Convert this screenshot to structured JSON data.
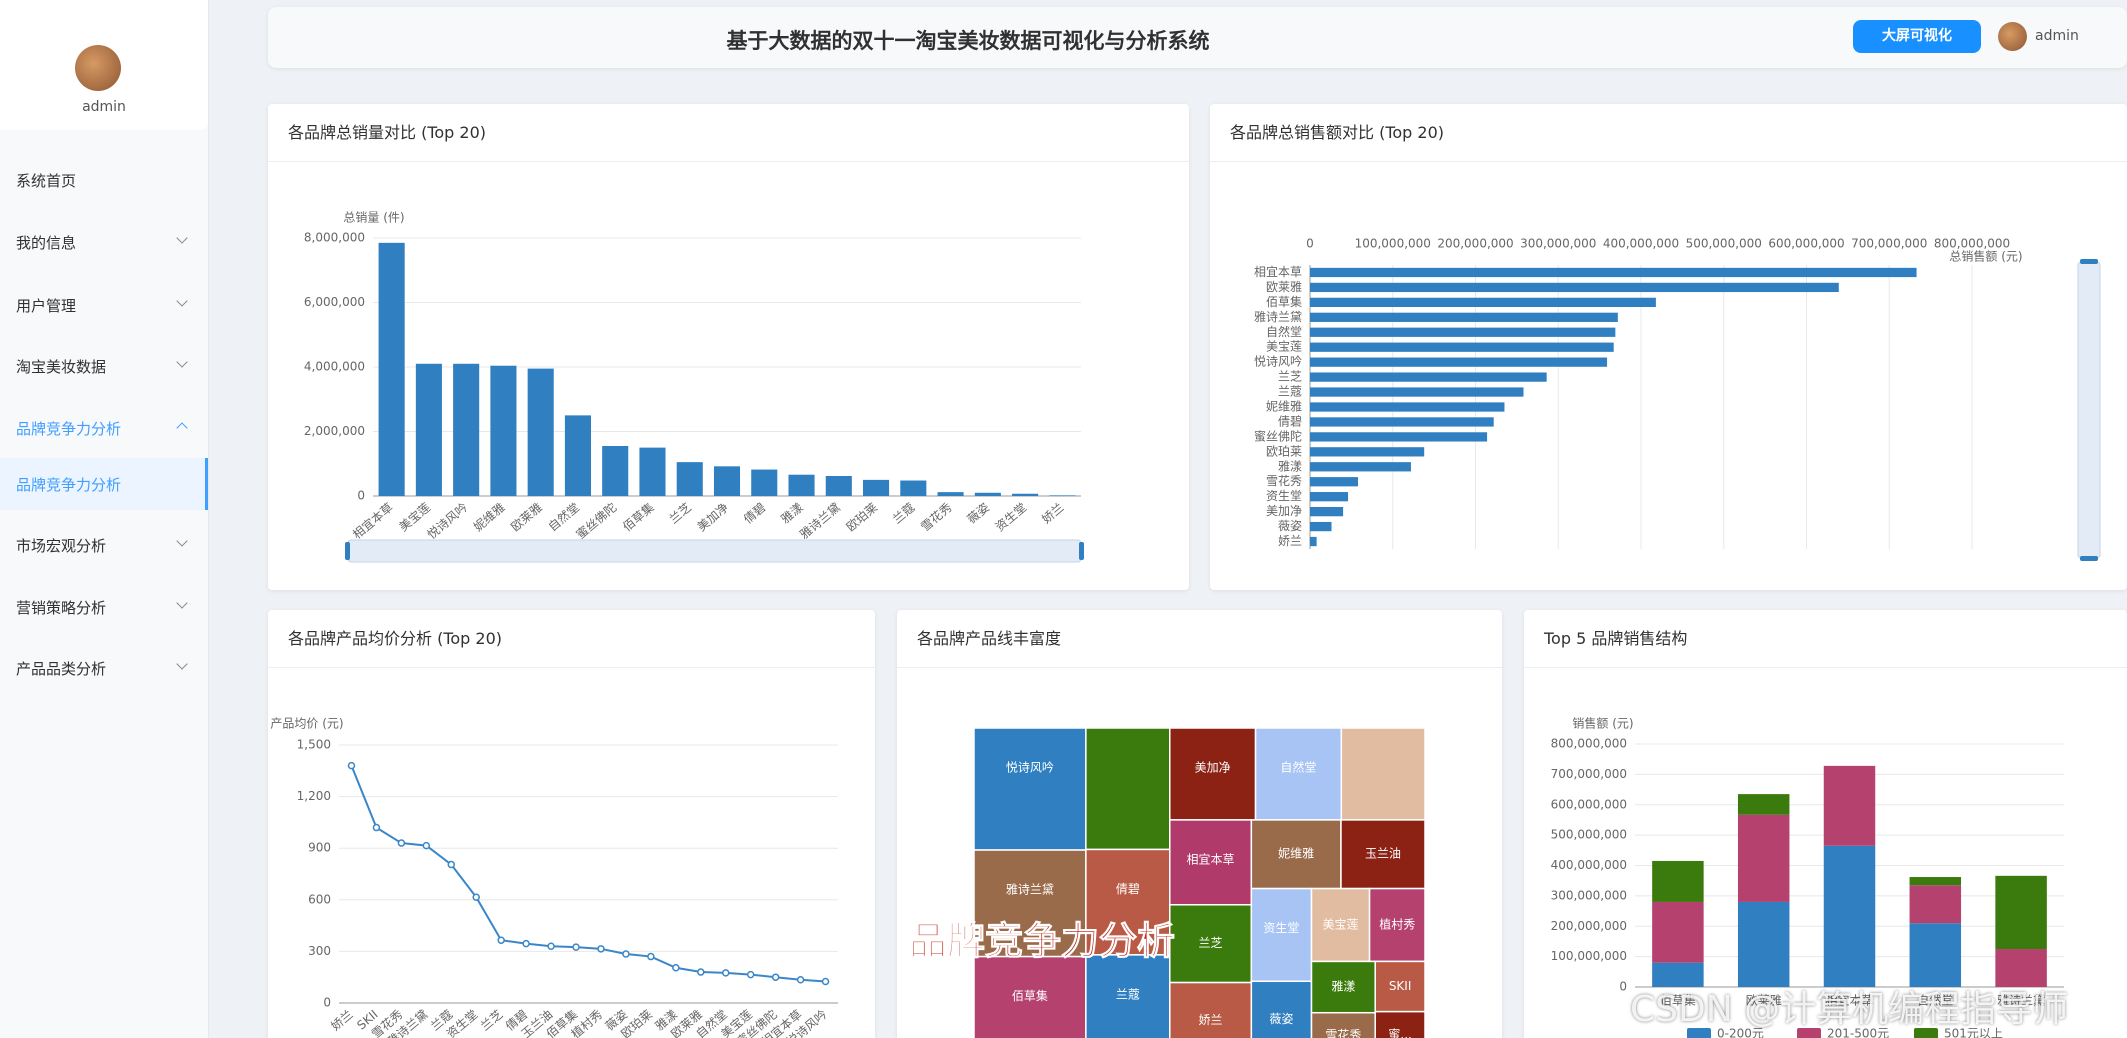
{
  "sidebar": {
    "user": "admin",
    "menu": [
      "系统首页",
      "我的信息",
      "用户管理",
      "淘宝美妆数据",
      "品牌竞争力分析",
      "品牌竞争力分析",
      "市场宏观分析",
      "营销策略分析",
      "产品品类分析"
    ]
  },
  "header": {
    "title": "基于大数据的双十一淘宝美妆数据可视化与分析系统",
    "button": "大屏可视化",
    "user": "admin"
  },
  "overlay": {
    "caption": "品牌竞争力分析",
    "watermark": "CSDN @计算机编程指导师"
  },
  "chart_data": [
    {
      "type": "bar",
      "title": "各品牌总销量对比 (Top 20)",
      "y_label": "总销量 (件)",
      "categories": [
        "相宜本草",
        "美宝莲",
        "悦诗风吟",
        "妮维雅",
        "欧莱雅",
        "自然堂",
        "蜜丝佛陀",
        "佰草集",
        "兰芝",
        "美加净",
        "倩碧",
        "雅漾",
        "雅诗兰黛",
        "欧珀莱",
        "兰蔻",
        "雪花秀",
        "薇姿",
        "资生堂",
        "娇兰"
      ],
      "values": [
        7850000,
        4100000,
        4100000,
        4040000,
        3950000,
        2500000,
        1550000,
        1500000,
        1050000,
        920000,
        820000,
        660000,
        620000,
        500000,
        480000,
        120000,
        100000,
        70000,
        20000
      ],
      "color": "#2f7fc1",
      "ylim": [
        0,
        8000000
      ],
      "yticks": [
        0,
        {
          "value": 2000000,
          "label": "2,000,000"
        },
        {
          "value": 4000000,
          "label": "4,000,000"
        },
        {
          "value": 6000000,
          "label": "6,000,000"
        },
        {
          "value": 8000000,
          "label": "8,000,000"
        }
      ],
      "grid": true
    },
    {
      "type": "barh",
      "title": "各品牌总销售额对比 (Top 20)",
      "x_label": "总销售额 (元)",
      "categories": [
        "相宜本草",
        "欧莱雅",
        "佰草集",
        "雅诗兰黛",
        "自然堂",
        "美宝莲",
        "悦诗风吟",
        "兰芝",
        "兰蔻",
        "妮维雅",
        "倩碧",
        "蜜丝佛陀",
        "欧珀莱",
        "雅漾",
        "雪花秀",
        "资生堂",
        "美加净",
        "薇姿",
        "娇兰"
      ],
      "values": [
        733000000,
        639000000,
        418000000,
        372000000,
        369000000,
        367000000,
        359000000,
        286000000,
        258000000,
        235000000,
        222000000,
        214000000,
        138000000,
        122000000,
        58000000,
        46000000,
        40000000,
        26000000,
        8000000
      ],
      "color": "#2f7fc1",
      "xlim": [
        0,
        800000000
      ],
      "xticks": [
        0,
        {
          "value": 100000000,
          "label": "100,000,000"
        },
        {
          "value": 200000000,
          "label": "200,000,000"
        },
        {
          "value": 300000000,
          "label": "300,000,000"
        },
        {
          "value": 400000000,
          "label": "400,000,000"
        },
        {
          "value": 500000000,
          "label": "500,000,000"
        },
        {
          "value": 600000000,
          "label": "600,000,000"
        },
        {
          "value": 700000000,
          "label": "700,000,000"
        },
        {
          "value": 800000000,
          "label": "800,000,000"
        }
      ],
      "grid": true
    },
    {
      "type": "line",
      "title": "各品牌产品均价分析 (Top 20)",
      "y_label": "产品均价 (元)",
      "categories": [
        "娇兰",
        "SKII",
        "雪花秀",
        "雅诗兰黛",
        "兰蔻",
        "资生堂",
        "兰芝",
        "倩碧",
        "玉兰油",
        "佰草集",
        "植村秀",
        "薇姿",
        "欧珀莱",
        "雅漾",
        "欧莱雅",
        "自然堂",
        "美宝莲",
        "蜜丝佛陀",
        "相宜本草",
        "悦诗风吟"
      ],
      "values": [
        1380,
        1020,
        930,
        915,
        805,
        615,
        365,
        345,
        330,
        325,
        315,
        285,
        270,
        205,
        180,
        175,
        165,
        150,
        135,
        125
      ],
      "color": "#3a86c8",
      "ylim": [
        0,
        1500
      ],
      "yticks": [
        0,
        300,
        600,
        900,
        {
          "value": 1200,
          "label": "1,200"
        },
        {
          "value": 1500,
          "label": "1,500"
        }
      ],
      "grid": true
    },
    {
      "type": "treemap",
      "title": "各品牌产品线丰富度",
      "categories": [
        "悦诗风吟",
        "雅诗兰黛",
        "佰草集",
        null,
        "倩碧",
        "兰蔻",
        "美加净",
        "自然堂",
        null,
        "相宜本草",
        "兰芝",
        "娇兰",
        "妮维雅",
        "玉兰油",
        "资生堂",
        "薇姿",
        "美宝莲",
        "植村秀",
        "雅漾",
        "雪花秀",
        "SKII",
        "蜜..."
      ],
      "values": [
        71,
        62,
        59,
        53,
        46,
        45,
        41,
        41,
        40,
        36,
        33,
        32,
        32,
        30,
        29,
        24,
        22,
        21,
        17,
        15,
        13,
        12
      ],
      "colors": [
        "#2f7fc1",
        "#9a6b4b",
        "#b5416e",
        "#3b7a0c",
        "#b85a45",
        "#2f7fc1",
        "#8b2214",
        "#a7c4f5",
        "#e2bca0",
        "#b03a6a",
        "#3b7a0c",
        "#b85a45",
        "#9a6b4b",
        "#8b2214",
        "#a7c4f5",
        "#2f7fc1",
        "#e2bca0",
        "#b5416e",
        "#3b7a0c",
        "#9a6b4b",
        "#b85a45",
        "#8b2214"
      ]
    },
    {
      "type": "bar",
      "stacked": true,
      "title": "Top 5 品牌销售结构",
      "y_label": "销售额 (元)",
      "categories": [
        "佰草集",
        "欧莱雅",
        "相宜本草",
        "自然堂",
        "雅诗兰黛"
      ],
      "series": [
        {
          "name": "0-200元",
          "color": "#2f7fc1",
          "values": [
            80000000,
            280000000,
            465000000,
            210000000,
            0
          ]
        },
        {
          "name": "201-500元",
          "color": "#b5416e",
          "values": [
            200000000,
            287000000,
            263000000,
            125000000,
            125000000
          ]
        },
        {
          "name": "501元以上",
          "color": "#3b7a0c",
          "values": [
            135000000,
            68000000,
            0,
            27000000,
            241000000
          ]
        }
      ],
      "ylim": [
        0,
        800000000
      ],
      "yticks": [
        0,
        {
          "value": 100000000,
          "label": "100,000,000"
        },
        {
          "value": 200000000,
          "label": "200,000,000"
        },
        {
          "value": 300000000,
          "label": "300,000,000"
        },
        {
          "value": 400000000,
          "label": "400,000,000"
        },
        {
          "value": 500000000,
          "label": "500,000,000"
        },
        {
          "value": 600000000,
          "label": "600,000,000"
        },
        {
          "value": 700000000,
          "label": "700,000,000"
        },
        {
          "value": 800000000,
          "label": "800,000,000"
        }
      ],
      "grid": true
    }
  ]
}
